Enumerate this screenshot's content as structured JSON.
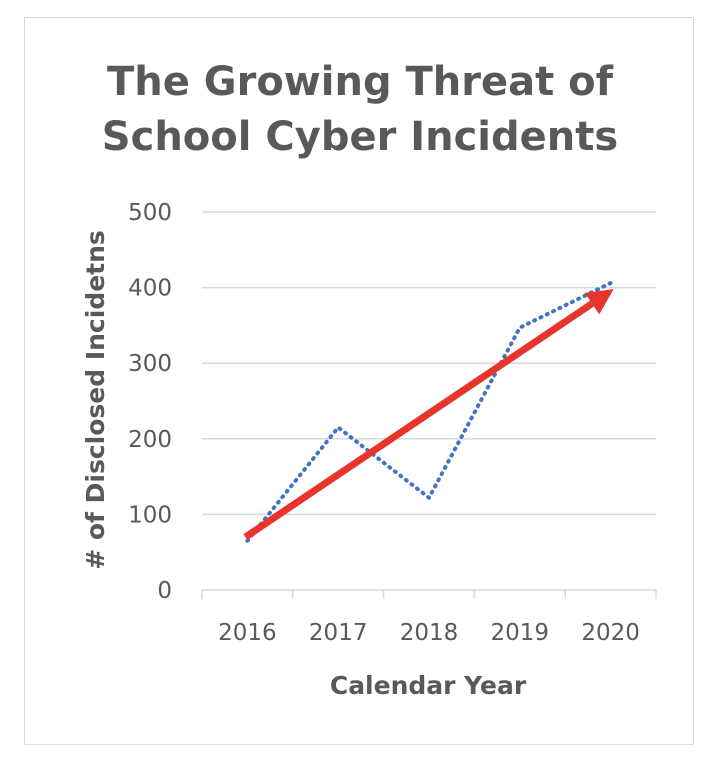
{
  "chart_data": {
    "type": "line",
    "title": "The Growing Threat of School Cyber Incidents",
    "title_lines": [
      "The Growing Threat of",
      "School Cyber Incidents"
    ],
    "xlabel": "Calendar Year",
    "ylabel": "# of Disclosed Incidetns",
    "categories": [
      "2016",
      "2017",
      "2018",
      "2019",
      "2020"
    ],
    "series": [
      {
        "values": [
          65,
          215,
          122,
          347,
          406
        ],
        "color": "#4472c4",
        "style": "dotted"
      }
    ],
    "trend_arrow": {
      "from": 70,
      "to": 398,
      "color": "#e8342a"
    },
    "ylim": [
      0,
      500
    ],
    "yticks": [
      "0",
      "100",
      "200",
      "300",
      "400",
      "500"
    ],
    "grid": true,
    "legend": "none"
  }
}
